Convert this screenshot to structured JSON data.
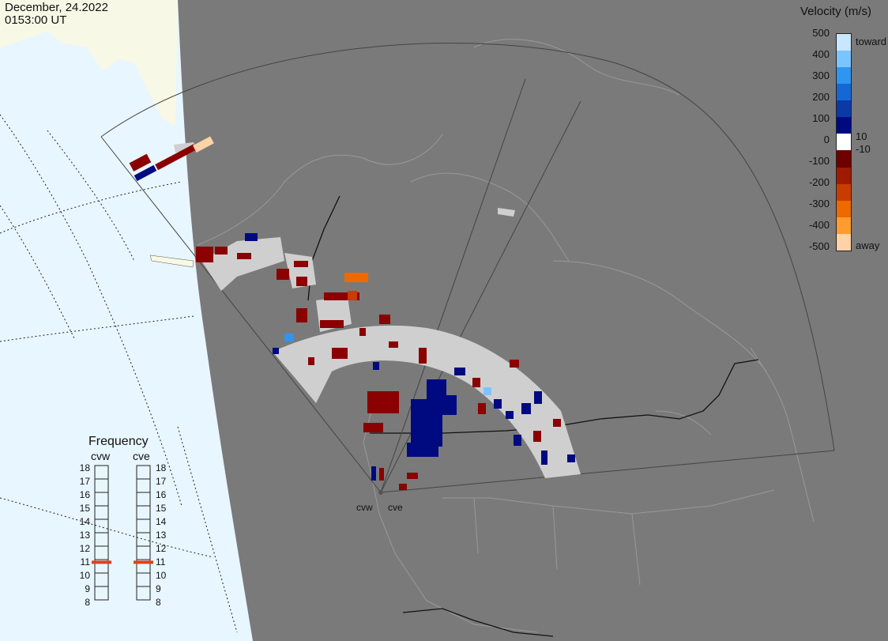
{
  "timestamp": {
    "date": "December, 24.2022",
    "time": "0153:00 UT"
  },
  "velocity_legend": {
    "title": "Velocity (m/s)",
    "ticks": [
      "500",
      "400",
      "300",
      "200",
      "100",
      "0",
      "-100",
      "-200",
      "-300",
      "-400",
      "-500"
    ],
    "threshold_pos": "10",
    "threshold_neg": "-10",
    "toward_label": "toward",
    "away_label": "away",
    "colors": [
      "#c8e6ff",
      "#7cc4ff",
      "#2f95f0",
      "#1567d4",
      "#0a3aa8",
      "#000a80",
      "#ffffff",
      "#6e0000",
      "#9e1a00",
      "#c83c00",
      "#ec6a00",
      "#ff9c30",
      "#ffd2a8"
    ]
  },
  "frequency_panel": {
    "title": "Frequency",
    "left_label": "cvw",
    "right_label": "cve",
    "ticks": [
      "18",
      "17",
      "16",
      "15",
      "14",
      "13",
      "12",
      "11",
      "10",
      "9",
      "8"
    ],
    "cvw_mhz": 10.8,
    "cve_mhz": 10.8,
    "marker_color": "#e0401a"
  },
  "radars": {
    "west": "cvw",
    "east": "cve"
  },
  "colors": {
    "ocean": "#e8f6ff",
    "land_dark": "#7a7a7a",
    "land_lit": "#f8f8e6",
    "ground_scatter": "#cfcfcf"
  }
}
